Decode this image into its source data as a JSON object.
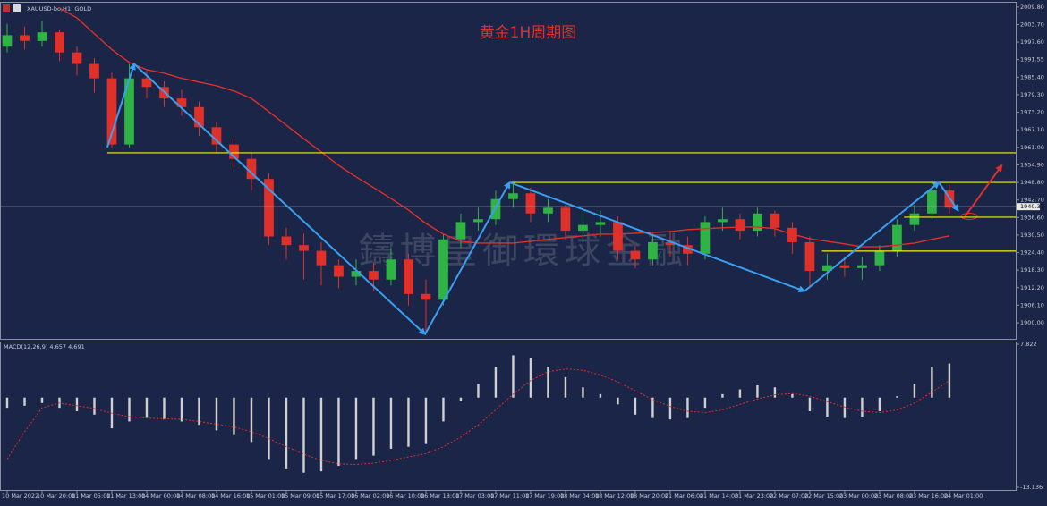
{
  "chart_data": [
    {
      "type": "candlestick",
      "symbol": "XAUUSD-bo,H1: GOLD",
      "title": "黄金1H周期图",
      "watermark": "鑄博皇御環球金融",
      "categories": [
        "10 Mar 2022",
        null,
        "10 Mar 20:00",
        null,
        "11 Mar 05:00",
        null,
        "11 Mar 13:00",
        null,
        "14 Mar 00:00",
        null,
        "14 Mar 08:00",
        null,
        "14 Mar 16:00",
        null,
        "15 Mar 01:00",
        null,
        "15 Mar 09:00",
        null,
        "15 Mar 17:00",
        null,
        "16 Mar 02:00",
        null,
        "16 Mar 10:00",
        null,
        "16 Mar 18:00",
        null,
        "17 Mar 03:00",
        null,
        "17 Mar 11:00",
        null,
        "17 Mar 19:00",
        null,
        "18 Mar 04:00",
        null,
        "18 Mar 12:00",
        null,
        "18 Mar 20:00",
        null,
        "21 Mar 06:00",
        null,
        "21 Mar 14:00",
        null,
        "21 Mar 23:00",
        null,
        "22 Mar 07:00",
        null,
        "22 Mar 15:00",
        null,
        "23 Mar 00:00",
        null,
        "23 Mar 08:00",
        null,
        "23 Mar 16:00",
        null,
        "24 Mar 01:00"
      ],
      "open": [
        1996,
        2000,
        1998,
        2001,
        1994,
        1990,
        1985,
        1962,
        1985,
        1982,
        1978,
        1975,
        1968,
        1962,
        1957,
        1950,
        1930,
        1927,
        1925,
        1920,
        1916,
        1918,
        1915,
        1922,
        1910,
        1908,
        1929,
        1935,
        1936,
        1943,
        1945,
        1938,
        1940,
        1932,
        1934,
        1935,
        1925,
        1922,
        1928,
        1927,
        1924,
        1935,
        1936,
        1932,
        1938,
        1933,
        1928,
        1918,
        1920,
        1919,
        1920,
        1925,
        1934,
        1938,
        1946
      ],
      "high": [
        2004,
        2003,
        2005,
        2002,
        1996,
        1992,
        1987,
        1990,
        1988,
        1984,
        1981,
        1977,
        1970,
        1964,
        1959,
        1952,
        1933,
        1931,
        1928,
        1922,
        1922,
        1921,
        1926,
        1924,
        1915,
        1931,
        1938,
        1940,
        1946,
        1949,
        1947,
        1943,
        1941,
        1939,
        1939,
        1937,
        1927,
        1931,
        1932,
        1930,
        1937,
        1940,
        1938,
        1940,
        1939,
        1935,
        1930,
        1924,
        1923,
        1923,
        1927,
        1936,
        1941,
        1949,
        1948
      ],
      "low": [
        1994,
        1995,
        1996,
        1991,
        1986,
        1980,
        1961,
        1961,
        1978,
        1975,
        1972,
        1965,
        1959,
        1954,
        1946,
        1927,
        1922,
        1915,
        1913,
        1912,
        1913,
        1911,
        1913,
        1906,
        1896,
        1906,
        1926,
        1932,
        1934,
        1940,
        1935,
        1935,
        1929,
        1929,
        1930,
        1922,
        1919,
        1920,
        1923,
        1920,
        1922,
        1932,
        1929,
        1930,
        1930,
        1924,
        1912,
        1915,
        1916,
        1915,
        1918,
        1923,
        1932,
        1936,
        1938
      ],
      "close": [
        2000,
        1998,
        2001,
        1994,
        1990,
        1985,
        1962,
        1985,
        1982,
        1978,
        1975,
        1968,
        1962,
        1957,
        1950,
        1930,
        1927,
        1925,
        1920,
        1916,
        1918,
        1915,
        1922,
        1910,
        1908,
        1929,
        1935,
        1936,
        1943,
        1945,
        1938,
        1940,
        1932,
        1934,
        1935,
        1925,
        1922,
        1928,
        1927,
        1924,
        1935,
        1936,
        1932,
        1938,
        1933,
        1928,
        1918,
        1920,
        1919,
        1920,
        1925,
        1934,
        1938,
        1946,
        1940
      ],
      "up_color": "#2fb344",
      "down_color": "#e0302a",
      "ma": {
        "color": "#e0302a",
        "values": [
          null,
          null,
          null,
          2009.5,
          2006,
          2000.5,
          1995,
          1990.5,
          1988,
          1986.8,
          1985,
          1983.7,
          1982.4,
          1980.6,
          1978,
          1973.4,
          1968.7,
          1964,
          1959.4,
          1954.7,
          1950.7,
          1947,
          1943.2,
          1939.2,
          1934.5,
          1930.8,
          1928.3,
          1927.7,
          1927.7,
          1927.7,
          1928.3,
          1929,
          1929.6,
          1930.2,
          1930.8,
          1930.8,
          1931.1,
          1931.4,
          1931.7,
          1932.4,
          1932.7,
          1933,
          1933.3,
          1933.3,
          1932.7,
          1930.8,
          1929.2,
          1928.3,
          1927.4,
          1926.4,
          1926.4,
          1927,
          1927.7,
          1929,
          1930.2
        ]
      },
      "hlines": [
        {
          "value": 1959.1,
          "from": 5.74,
          "color": "#f5f500"
        },
        {
          "value": 1948.8,
          "from": 28.8,
          "color": "#f5f500"
        },
        {
          "value": 1936.7,
          "from": 51.4,
          "color": "#f5f500"
        },
        {
          "value": 1924.9,
          "from": 46.7,
          "color": "#f5f500"
        }
      ],
      "trend": {
        "color": "#3a9ff0",
        "x": [
          5.74,
          7.28,
          23.95,
          28.8,
          45.7,
          53.4,
          54.5
        ],
        "y": [
          1961,
          1990,
          1896,
          1948.8,
          1911,
          1948.8,
          1939
        ]
      },
      "arrow": {
        "color": "#e0302a",
        "x": [
          54.9,
          57.0
        ],
        "y": [
          1937,
          1954.7
        ]
      },
      "last_price": 1940.37,
      "xlim": [
        -0.41,
        57.8
      ],
      "ylim": [
        1894.4,
        2011.0
      ],
      "yticks": [
        {
          "value": 2009.8,
          "label": "2009.80"
        },
        {
          "value": 2003.7,
          "label": "2003.70"
        },
        {
          "value": 1997.6,
          "label": "1997.60"
        },
        {
          "value": 1991.55,
          "label": "1991.55"
        },
        {
          "value": 1985.4,
          "label": "1985.40"
        },
        {
          "value": 1979.3,
          "label": "1979.30"
        },
        {
          "value": 1973.2,
          "label": "1973.20"
        },
        {
          "value": 1967.1,
          "label": "1967.10"
        },
        {
          "value": 1961,
          "label": "1961.00"
        },
        {
          "value": 1954.9,
          "label": "1954.90"
        },
        {
          "value": 1948.8,
          "label": "1948.80"
        },
        {
          "value": 1942.7,
          "label": "1942.70"
        },
        {
          "value": 1936.6,
          "label": "1936.60"
        },
        {
          "value": 1930.5,
          "label": "1930.50"
        },
        {
          "value": 1924.4,
          "label": "1924.40"
        },
        {
          "value": 1918.3,
          "label": "1918.30"
        },
        {
          "value": 1912.2,
          "label": "1912.20"
        },
        {
          "value": 1906.1,
          "label": "1906.10"
        },
        {
          "value": 1900,
          "label": "1900.00"
        }
      ]
    },
    {
      "type": "macd",
      "label": "MACD(12,26,9) 4.657 4.691",
      "series": [
        {
          "kind": "bar",
          "color": "#d0d0d0",
          "values": [
            -1.5,
            -1.2,
            -0.8,
            -1.5,
            -2.0,
            -2.5,
            -4.5,
            -3.5,
            -3.0,
            -3.2,
            -3.5,
            -4.0,
            -4.8,
            -5.5,
            -6.5,
            -9.0,
            -10.5,
            -11.0,
            -10.8,
            -10.0,
            -9.0,
            -8.5,
            -7.5,
            -7.2,
            -6.8,
            -3.5,
            -0.5,
            2.0,
            4.5,
            6.2,
            5.8,
            4.5,
            3.0,
            1.5,
            0.5,
            -1.0,
            -2.5,
            -3.0,
            -3.2,
            -3.0,
            -1.5,
            0.5,
            1.2,
            1.8,
            1.5,
            0.5,
            -2.0,
            -2.8,
            -3.0,
            -2.8,
            -2.0,
            0.2,
            2.0,
            4.5,
            5.0
          ]
        },
        {
          "kind": "dotted-line",
          "color": "#e0302a",
          "values": [
            -9,
            -5,
            -1.5,
            -0.8,
            -1.2,
            -1.6,
            -2.3,
            -2.8,
            -3.0,
            -3.1,
            -3.2,
            -3.5,
            -3.9,
            -4.3,
            -5.0,
            -6.0,
            -7.2,
            -8.3,
            -9.2,
            -9.7,
            -9.8,
            -9.6,
            -9.2,
            -8.7,
            -8.2,
            -7.2,
            -5.8,
            -4.0,
            -1.8,
            0.5,
            2.5,
            3.8,
            4.2,
            4.0,
            3.3,
            2.3,
            1.0,
            -0.3,
            -1.3,
            -2.0,
            -2.2,
            -1.8,
            -1.0,
            -0.2,
            0.4,
            0.6,
            0.2,
            -0.6,
            -1.4,
            -2.0,
            -2.2,
            -1.8,
            -0.8,
            0.8,
            2.5
          ]
        }
      ],
      "ylim": [
        -13.136,
        7.822
      ],
      "yticks": [
        7.822,
        -13.136
      ]
    }
  ]
}
